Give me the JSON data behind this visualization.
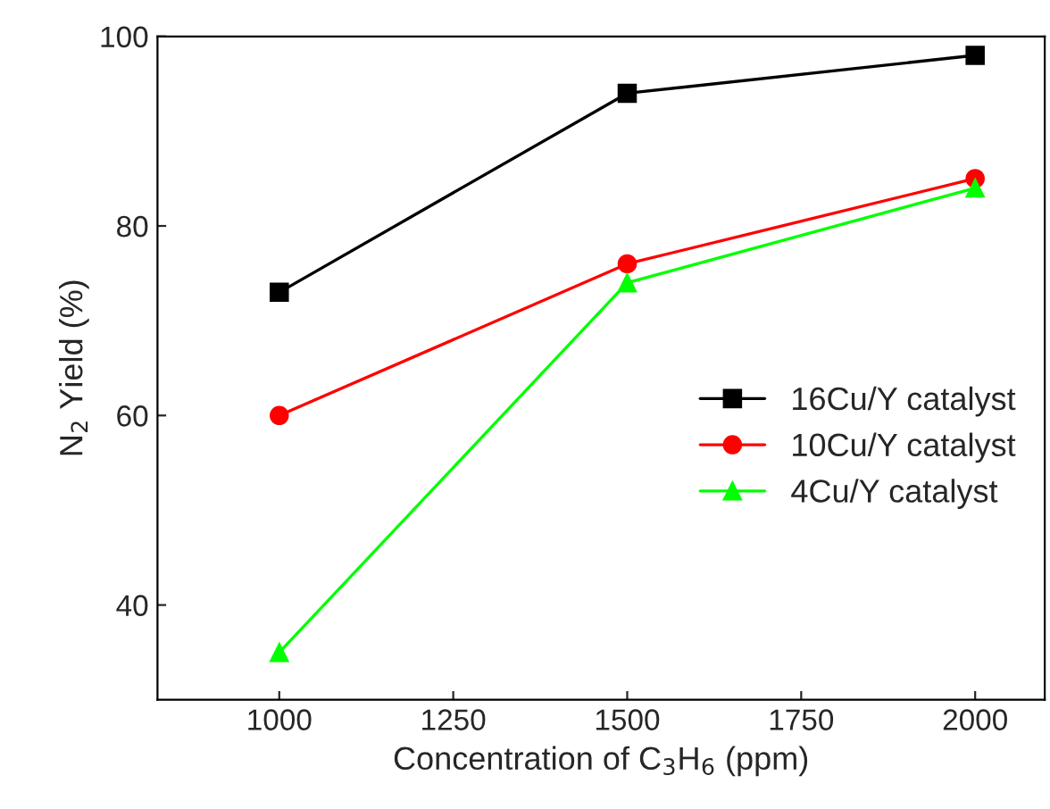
{
  "chart_data": {
    "type": "line",
    "xlabel": "Concentration of C$_{3}$H$_{6}$ (ppm)",
    "ylabel": "N$_{2}$ Yield (%)",
    "x": [
      1000,
      1500,
      2000
    ],
    "series": [
      {
        "name": "16Cu/Y catalyst",
        "color": "#000000",
        "marker": "square",
        "values": [
          73,
          94,
          98
        ]
      },
      {
        "name": "10Cu/Y catalyst",
        "color": "#ff0000",
        "marker": "circle",
        "values": [
          60,
          76,
          85
        ]
      },
      {
        "name": "4Cu/Y catalyst",
        "color": "#00ff00",
        "marker": "triangle",
        "values": [
          35,
          74,
          84
        ]
      }
    ],
    "xlim": [
      825,
      2100
    ],
    "ylim": [
      30,
      100
    ],
    "xticks": [
      1000,
      1250,
      1500,
      1750,
      2000
    ],
    "yticks": [
      40,
      60,
      80,
      100
    ],
    "grid": false,
    "legend": "right",
    "line_style": "solid"
  }
}
